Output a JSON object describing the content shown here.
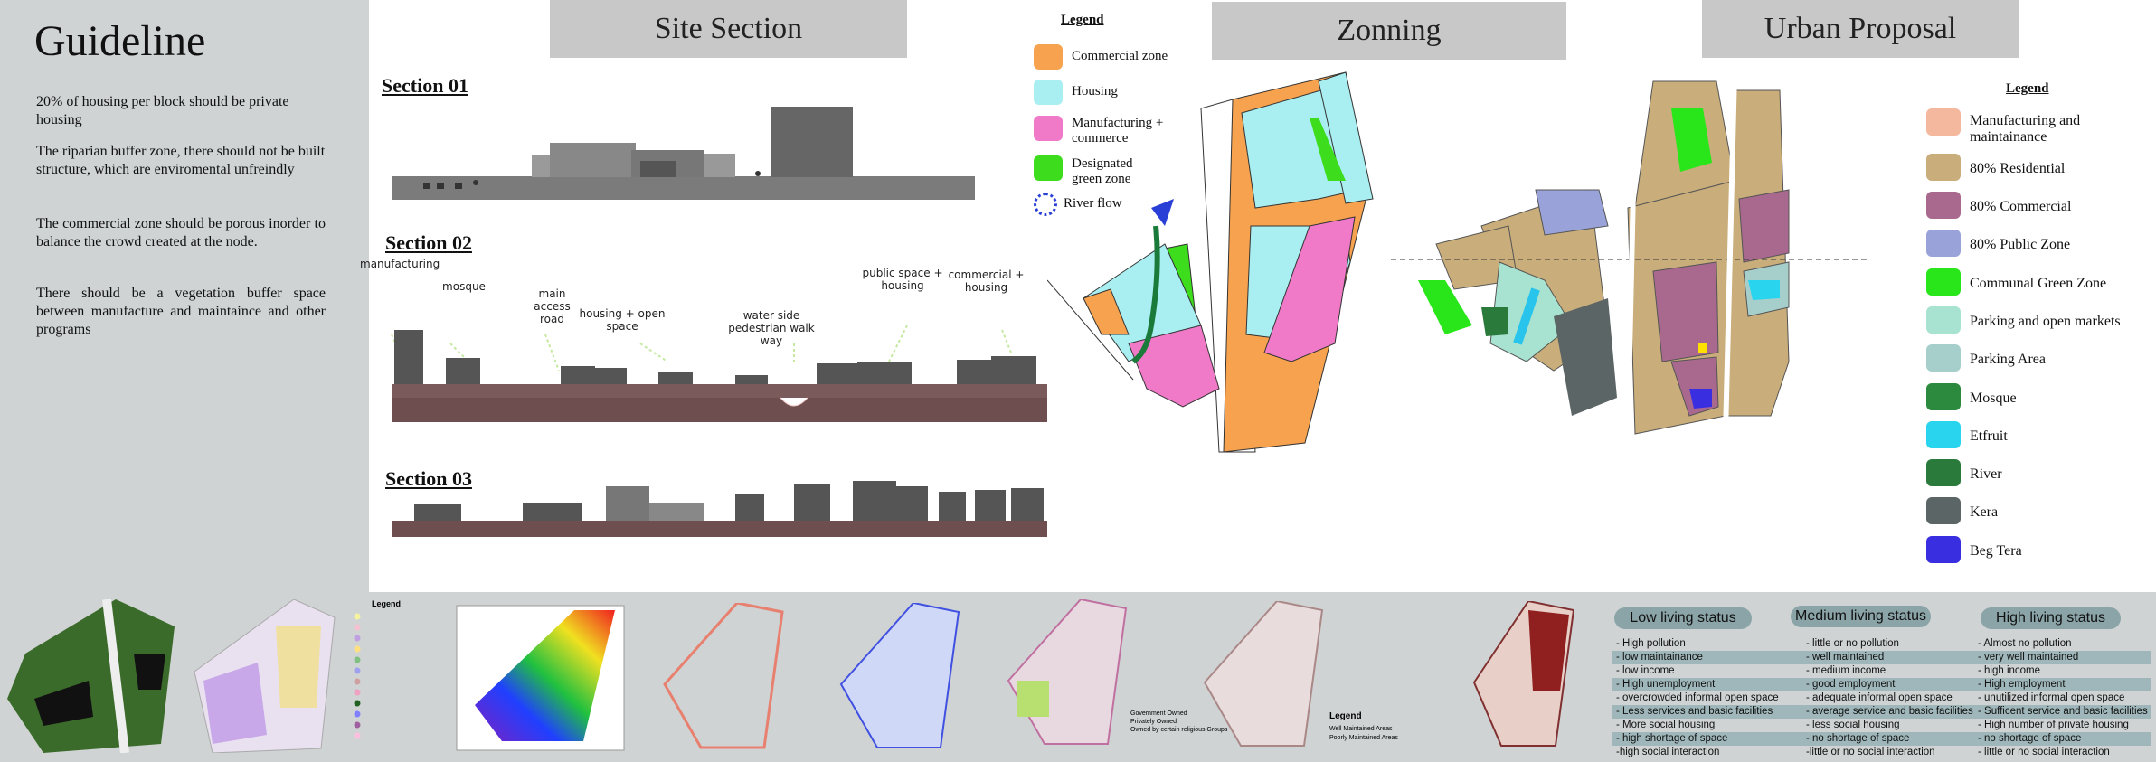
{
  "guideline": {
    "title": "Guideline",
    "items": [
      "20% of housing per block should be private housing",
      "The riparian buffer zone, there should not be built structure, which are enviromental unfreindly",
      "The commercial zone should be porous inorder to balance the crowd created at the node.",
      "There should be a vegetation buffer space between manufacture and maintaince and other programs"
    ]
  },
  "site_section": {
    "title": "Site Section",
    "section1": "Section 01",
    "section2": "Section 02",
    "section3": "Section 03",
    "annotations": [
      "manufacturing",
      "mosque",
      "main access road",
      "housing + open space",
      "water side pedestrian walk way",
      "public space + housing",
      "commercial + housing"
    ]
  },
  "zoning": {
    "title": "Zonning",
    "legend_title": "Legend",
    "legend": [
      {
        "label": "Commercial zone",
        "color": "#f7a24e"
      },
      {
        "label": "Housing",
        "color": "#a9eff2"
      },
      {
        "label": "Manufacturing + commerce",
        "color": "#f07ac8"
      },
      {
        "label": "Designated green zone",
        "color": "#3ddc1c"
      },
      {
        "label": "River flow",
        "color": "#2a3fd6"
      }
    ]
  },
  "urban_proposal": {
    "title": "Urban Proposal",
    "legend_title": "Legend",
    "legend": [
      {
        "label": "Manufacturing and maintainance",
        "color": "#f4b89e"
      },
      {
        "label": "80% Residential",
        "color": "#c9ad7a"
      },
      {
        "label": "80% Commercial",
        "color": "#a9698f"
      },
      {
        "label": "80% Public Zone",
        "color": "#9aa3d9"
      },
      {
        "label": "Communal Green Zone",
        "color": "#28e61a"
      },
      {
        "label": "Parking and open markets",
        "color": "#a7e3d0"
      },
      {
        "label": "Parking Area",
        "color": "#a6cfcc"
      },
      {
        "label": "Mosque",
        "color": "#2b8a3e"
      },
      {
        "label": "Etfruit",
        "color": "#29d4ee"
      },
      {
        "label": "River",
        "color": "#2a7a3c"
      },
      {
        "label": "Kera",
        "color": "#5c6566"
      },
      {
        "label": "Beg Tera",
        "color": "#3a2fe0"
      }
    ]
  },
  "mini_maps": {
    "legend_title": "Legend",
    "legend2": [
      "Government Owned",
      "Privately Owned",
      "Owned by certain religious Groups"
    ],
    "legend3": [
      "Well Maintained Areas",
      "Poorly Maintained Areas"
    ]
  },
  "living_status": {
    "low": {
      "title": "Low living status",
      "rows": [
        "- High pollution",
        "- low maintainance",
        "- low income",
        "- High unemployment",
        "- overcrowded informal open space",
        "- Less services and basic facilities",
        "- More social housing",
        "- high shortage of space",
        "-high social interaction"
      ]
    },
    "medium": {
      "title": "Medium living status",
      "rows": [
        "- little or no pollution",
        "- well maintained",
        "- medium income",
        "- good employment",
        "- adequate informal open space",
        "- average service and basic facilities",
        "- less social housing",
        "- no shortage of space",
        "-little or no social interaction"
      ]
    },
    "high": {
      "title": "High living status",
      "rows": [
        "- Almost no pollution",
        "- very well maintained",
        "- high income",
        "- High employment",
        "- unutilized informal open space",
        "- Sufficent service and basic facilities",
        "- High number of private housing",
        "- no shortage of space",
        "- little or no social interaction"
      ]
    }
  }
}
